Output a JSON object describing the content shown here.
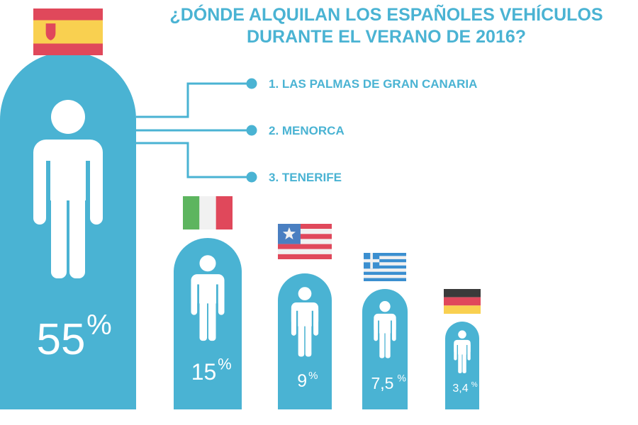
{
  "title": {
    "line1": "¿DÓNDE ALQUILAN LOS ESPAÑOLES VEHÍCULOS",
    "line2": "DURANTE EL VERANO DE 2016?"
  },
  "colors": {
    "accent": "#4ab3d3",
    "person": "#ffffff"
  },
  "chart_data": {
    "type": "bar",
    "categories": [
      "España",
      "Italia",
      "Estados Unidos",
      "Grecia",
      "Alemania"
    ],
    "flags": [
      "spain-flag-icon",
      "italy-flag-icon",
      "usa-flag-icon",
      "greece-flag-icon",
      "germany-flag-icon"
    ],
    "values": [
      55,
      15,
      9,
      7.5,
      3.4
    ],
    "value_labels": [
      "55",
      "15",
      "9",
      "7,5",
      "3,4"
    ],
    "unit": "%",
    "title": "¿DÓNDE ALQUILAN LOS ESPAÑOLES VEHÍCULOS DURANTE EL VERANO DE 2016?",
    "annotations": [
      "1. LAS PALMAS DE GRAN CANARIA",
      "2. MENORCA",
      "3. TENERIFE"
    ]
  }
}
